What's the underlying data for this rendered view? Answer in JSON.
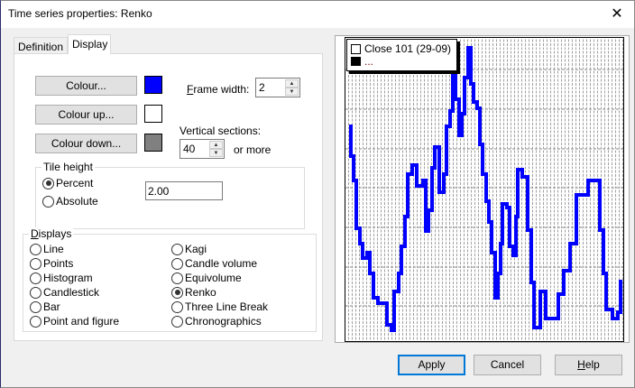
{
  "window": {
    "title": "Time series properties: Renko",
    "close_icon": "close-icon"
  },
  "tabs": [
    {
      "label": "Definition",
      "selected": false
    },
    {
      "label": "Display",
      "selected": true
    }
  ],
  "colours": {
    "colour_label": "Colour...",
    "colour_value": "#0000ff",
    "colour_up_label": "Colour up...",
    "colour_up_value": "#ffffff",
    "colour_down_label": "Colour down...",
    "colour_down_value": "#808080"
  },
  "frame_width": {
    "label_mnemonic": "F",
    "label_rest": "rame width:",
    "value": "2"
  },
  "vertical_sections": {
    "label": "Vertical sections:",
    "value": "40",
    "suffix": "or more"
  },
  "tile_height": {
    "title": "Tile height",
    "options": [
      "Percent",
      "Absolute"
    ],
    "selected": "Percent",
    "value": "2.00"
  },
  "displays": {
    "title_mnemonic": "D",
    "title_rest": "isplays",
    "options": [
      "Line",
      "Points",
      "Histogram",
      "Candlestick",
      "Bar",
      "Point and figure",
      "Kagi",
      "Candle volume",
      "Equivolume",
      "Renko",
      "Three Line Break",
      "Chronographics"
    ],
    "selected": "Renko"
  },
  "preview": {
    "legend": [
      {
        "label": "Close 101 (29-09)",
        "swatch": "#ffffff"
      },
      {
        "label": "...",
        "swatch": "#000000"
      }
    ],
    "line_color": "#0000ff"
  },
  "buttons": {
    "apply": "Apply",
    "cancel": "Cancel",
    "help_mnemonic": "H",
    "help_rest": "elp"
  }
}
